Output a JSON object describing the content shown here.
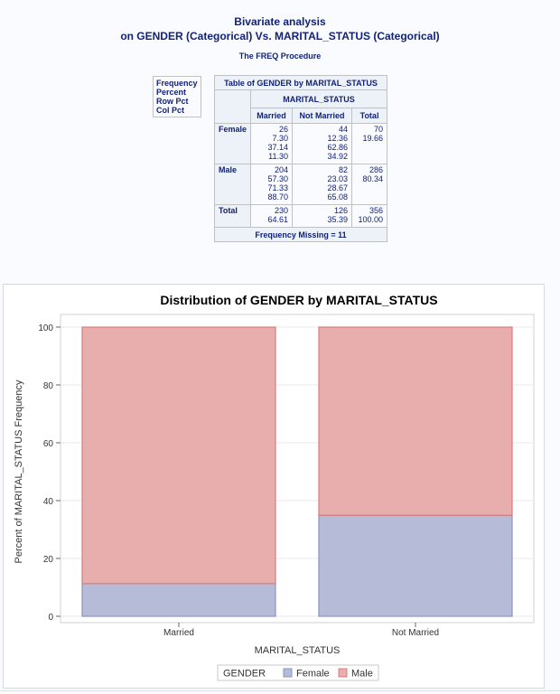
{
  "header": {
    "title_line1": "Bivariate analysis",
    "title_line2": "on GENDER (Categorical) Vs. MARITAL_STATUS (Categorical)",
    "procedure": "The FREQ Procedure"
  },
  "stat_legend": [
    "Frequency",
    "Percent",
    "Row Pct",
    "Col Pct"
  ],
  "freq_table": {
    "title": "Table of GENDER by MARITAL_STATUS",
    "col_var": "MARITAL_STATUS",
    "row_var": "GENDER",
    "columns": [
      "Married",
      "Not Married",
      "Total"
    ],
    "rows": [
      {
        "label": "Female",
        "married": [
          "26",
          "7.30",
          "37.14",
          "11.30"
        ],
        "not_married": [
          "44",
          "12.36",
          "62.86",
          "34.92"
        ],
        "total": [
          "70",
          "19.66"
        ]
      },
      {
        "label": "Male",
        "married": [
          "204",
          "57.30",
          "71.33",
          "88.70"
        ],
        "not_married": [
          "82",
          "23.03",
          "28.67",
          "65.08"
        ],
        "total": [
          "286",
          "80.34"
        ]
      },
      {
        "label": "Total",
        "married": [
          "230",
          "64.61"
        ],
        "not_married": [
          "126",
          "35.39"
        ],
        "total": [
          "356",
          "100.00"
        ]
      }
    ],
    "footer": "Frequency Missing = 11"
  },
  "chart_data": {
    "type": "bar",
    "stacked": true,
    "title": "Distribution of GENDER by MARITAL_STATUS",
    "xlabel": "MARITAL_STATUS",
    "ylabel": "Percent of MARITAL_STATUS Frequency",
    "categories": [
      "Married",
      "Not Married"
    ],
    "series": [
      {
        "name": "Female",
        "values": [
          11.3,
          34.92
        ],
        "color": "#b6bcd8"
      },
      {
        "name": "Male",
        "values": [
          88.7,
          65.08
        ],
        "color": "#e8aeae"
      }
    ],
    "ylim": [
      0,
      100
    ],
    "yticks": [
      0,
      20,
      40,
      60,
      80,
      100
    ],
    "legend_title": "GENDER",
    "legend_position": "bottom",
    "grid": true,
    "colors": {
      "female_border": "#8a93c4",
      "male_border": "#d87d7d",
      "grid": "#e8e8e8"
    }
  }
}
